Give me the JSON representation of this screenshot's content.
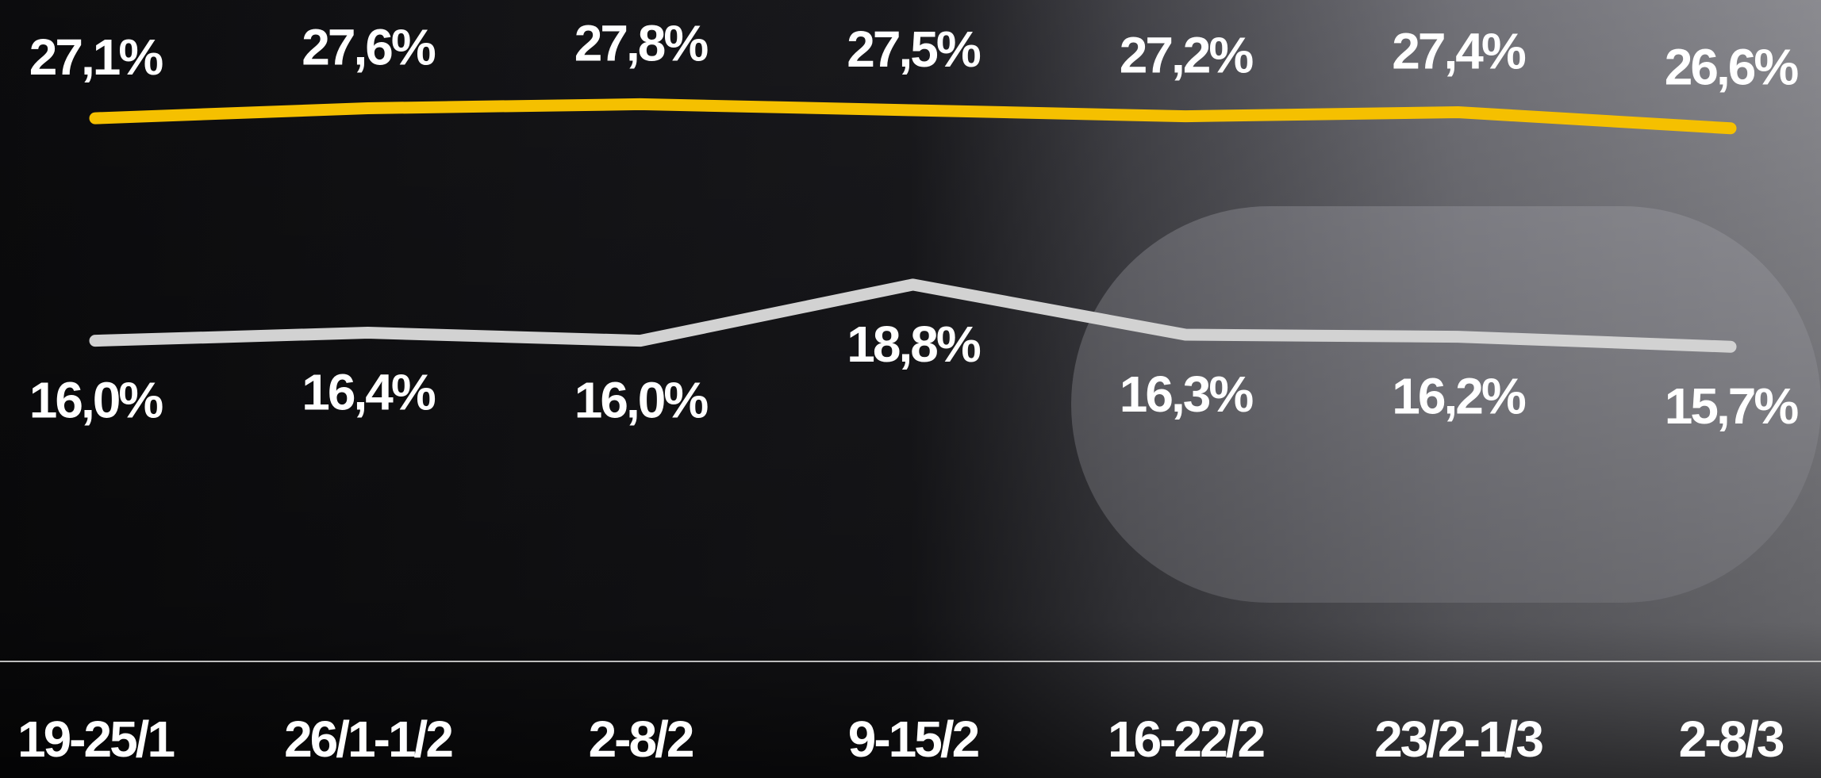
{
  "chart_data": {
    "type": "line",
    "categories": [
      "19-25/1",
      "26/1-1/2",
      "2-8/2",
      "9-15/2",
      "16-22/2",
      "23/2-1/3",
      "2-8/3"
    ],
    "series": [
      {
        "color": "#f5c000",
        "values": [
          27.1,
          27.6,
          27.8,
          27.5,
          27.2,
          27.4,
          26.6
        ],
        "value_labels": [
          "27,1%",
          "27,6%",
          "27,8%",
          "27,5%",
          "27,2%",
          "27,4%",
          "26,6%"
        ]
      },
      {
        "color": "#d2d2d2",
        "values": [
          16.0,
          16.4,
          16.0,
          18.8,
          16.3,
          16.2,
          15.7
        ],
        "value_labels": [
          "16,0%",
          "16,4%",
          "16,0%",
          "18,8%",
          "16,3%",
          "16,2%",
          "15,7%"
        ]
      }
    ],
    "ylim": [
      0,
      33
    ]
  }
}
